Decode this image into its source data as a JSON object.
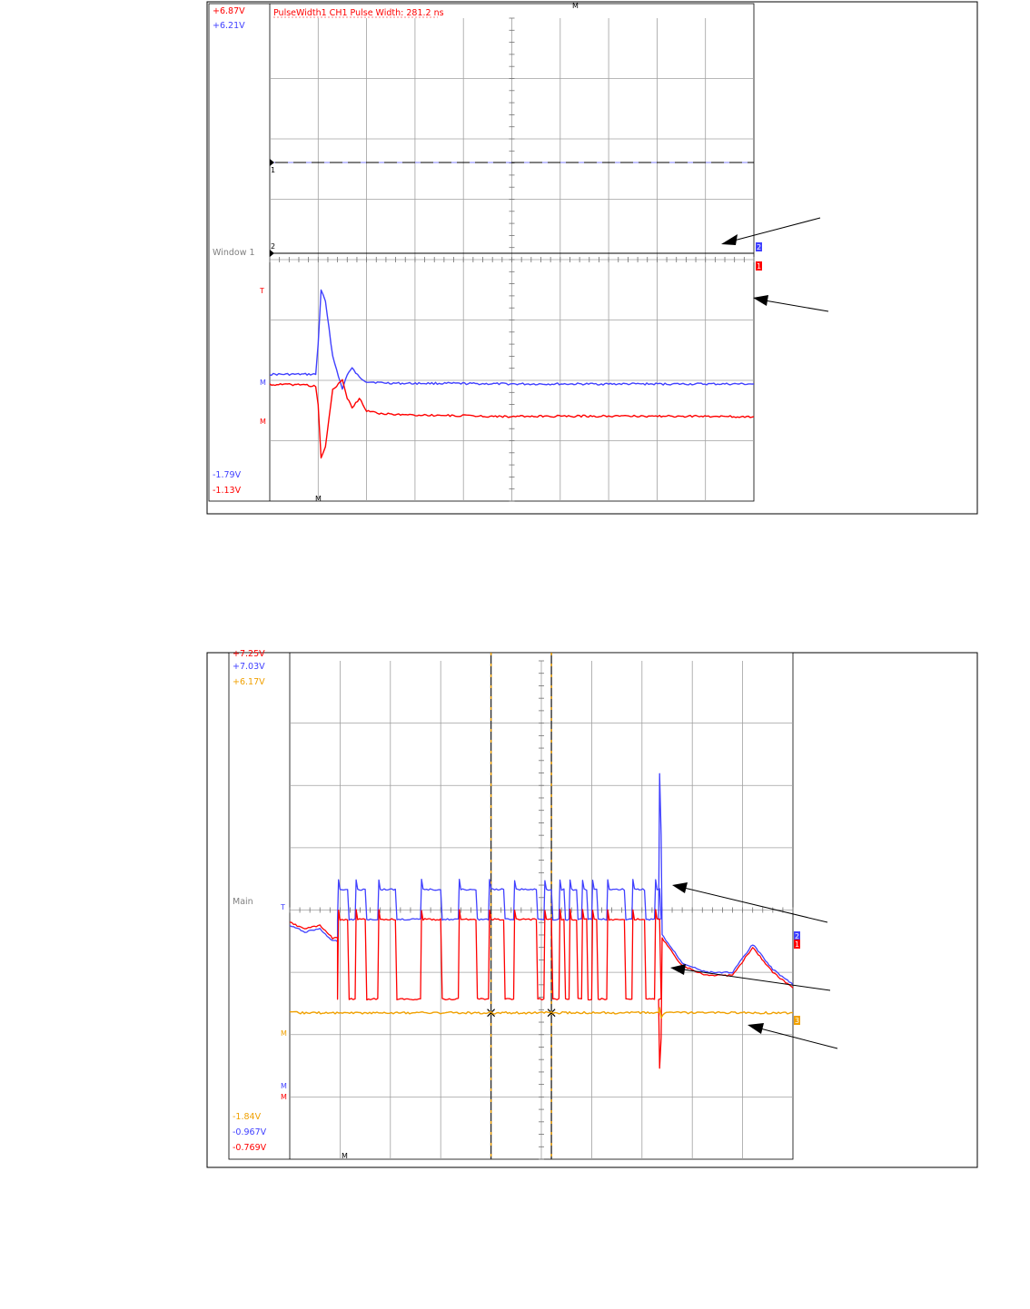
{
  "colors": {
    "ch1_red": "#ff0000",
    "ch2_blue": "#4040ff",
    "ch3_orange": "#f0a000",
    "grid": "#a0a0a0",
    "frame": "#000000"
  },
  "chart_data": [
    {
      "type": "line",
      "window_label": "Window 1",
      "measurement": "PulseWidth1 CH1 Pulse Width: 281.2 ns",
      "scale_labels": {
        "ch1_top": "+6.87V",
        "ch2_top": "+6.21V",
        "ch2_bottom": "-1.79V",
        "ch1_bottom": "-1.13V"
      },
      "markers": {
        "ch1_ref": "1",
        "ch2_ref": "2",
        "trigger": "T",
        "m_ch2": "M",
        "m_ch1": "M",
        "m_top": "M",
        "m_bottom": "M"
      },
      "channel_tags": {
        "ch2": "2",
        "ch1": "1"
      },
      "grid": true,
      "divisions": {
        "x": 10,
        "y": 8
      },
      "x": [
        0.0,
        0.7,
        0.95,
        1.0,
        1.06,
        1.15,
        1.3,
        1.5,
        1.6,
        1.7,
        1.85,
        2.0,
        2.3,
        2.7,
        3.5,
        5.0,
        7.0,
        10.0
      ],
      "series": [
        {
          "channel": "ch2",
          "y": [
            2.1,
            2.1,
            2.1,
            2.6,
            3.5,
            3.3,
            2.4,
            1.85,
            2.1,
            2.2,
            2.05,
            1.98,
            1.96,
            1.95,
            1.95,
            1.94,
            1.94,
            1.94
          ]
        },
        {
          "channel": "ch1",
          "y": [
            1.93,
            1.93,
            1.9,
            1.6,
            0.7,
            0.9,
            1.85,
            2.0,
            1.7,
            1.55,
            1.7,
            1.5,
            1.45,
            1.43,
            1.42,
            1.4,
            1.41,
            1.4
          ]
        }
      ]
    },
    {
      "type": "line",
      "window_label": "Main",
      "scale_labels": {
        "ch1_top": "+7.25V",
        "ch2_top": "+7.03V",
        "ch3_top": "+6.17V",
        "ch3_bottom": "-1.84V",
        "ch2_bottom": "-0.967V",
        "ch1_bottom": "-0.769V"
      },
      "markers": {
        "trigger": "T",
        "m_ch3": "M",
        "m_ch2": "M",
        "m_ch1": "M",
        "m_bottom": "M"
      },
      "channel_tags": {
        "ch2": "2",
        "ch1": "1",
        "ch3": "3"
      },
      "grid": true,
      "divisions": {
        "x": 10,
        "y": 8
      },
      "cursors_x": [
        4.0,
        5.2
      ],
      "ch2_high": 4.33,
      "ch2_low": 3.85,
      "ch1_high": 3.85,
      "ch1_low": 2.57,
      "ch3_level": 2.35,
      "pulses": [
        [
          0.95,
          1.15
        ],
        [
          1.3,
          1.5
        ],
        [
          1.75,
          2.1
        ],
        [
          2.6,
          3.0
        ],
        [
          3.35,
          3.7
        ],
        [
          3.95,
          4.25
        ],
        [
          4.45,
          4.9
        ],
        [
          5.05,
          5.2
        ],
        [
          5.35,
          5.45
        ],
        [
          5.55,
          5.7
        ],
        [
          5.8,
          5.9
        ],
        [
          6.0,
          6.1
        ],
        [
          6.3,
          6.65
        ],
        [
          6.8,
          7.05
        ],
        [
          7.25,
          7.35
        ]
      ],
      "spike": {
        "x": 7.35,
        "ch2_peak": 6.2,
        "ch1_dip": 1.45
      },
      "tail": {
        "x": [
          7.4,
          7.8,
          8.3,
          8.8,
          9.2,
          9.6,
          10.0
        ],
        "y": [
          3.6,
          3.15,
          3.0,
          3.0,
          3.45,
          3.05,
          2.8
        ]
      },
      "start": {
        "x": [
          0.0,
          0.3,
          0.6,
          0.85,
          0.95
        ],
        "y": [
          3.75,
          3.65,
          3.7,
          3.5,
          3.5
        ]
      }
    }
  ]
}
